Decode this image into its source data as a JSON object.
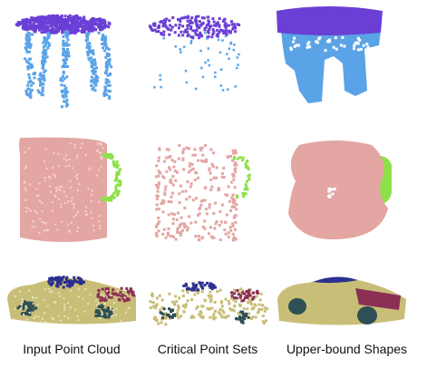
{
  "figure": {
    "columns": [
      "Input Point Cloud",
      "Critical Point Sets",
      "Upper-bound Shapes"
    ],
    "rows": [
      "table",
      "mug",
      "car"
    ]
  },
  "colors": {
    "table_top": "#6a3fd6",
    "table_leg": "#5aa3e6",
    "mug_body": "#e3a6a2",
    "mug_handle": "#8ee04a",
    "car_body": "#c9be78",
    "car_roof": "#2b2f8f",
    "car_door": "#8c2f55",
    "car_wheel": "#2e4f55"
  }
}
